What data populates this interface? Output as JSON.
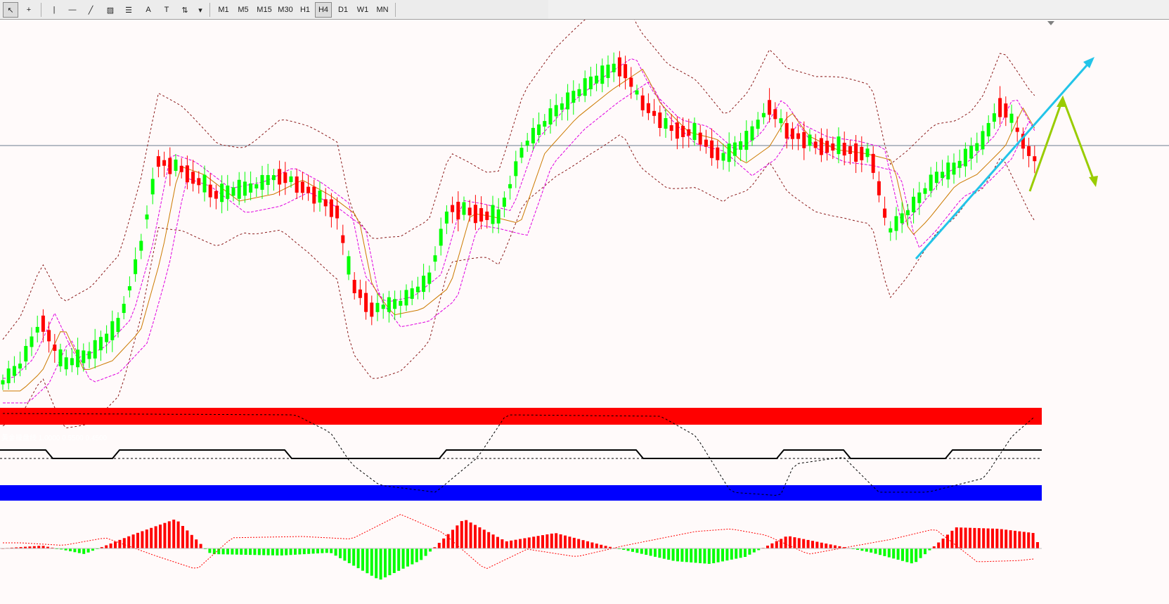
{
  "toolbar": {
    "tools": [
      {
        "name": "cursor-arrow-icon",
        "glyph": "↖"
      },
      {
        "name": "crosshair-icon",
        "glyph": "+"
      },
      {
        "name": "vertical-line-icon",
        "glyph": "|"
      },
      {
        "name": "horizontal-line-icon",
        "glyph": "—"
      },
      {
        "name": "trend-line-icon",
        "glyph": "╱"
      },
      {
        "name": "equidistant-channel-icon",
        "glyph": "▨"
      },
      {
        "name": "fibonacci-retracement-icon",
        "glyph": "☰"
      },
      {
        "name": "text-icon",
        "glyph": "A"
      },
      {
        "name": "text-label-icon",
        "glyph": "T"
      },
      {
        "name": "arrows-tool-icon",
        "glyph": "⇅"
      }
    ],
    "timeframes": [
      "M1",
      "M5",
      "M15",
      "M30",
      "H1",
      "H4",
      "D1",
      "W1",
      "MN"
    ],
    "active_timeframe": "H4"
  },
  "indicator": {
    "label": "黄金操盘线 1.0000 0.5500 0.4500"
  },
  "colors": {
    "bull": "#00ff00",
    "bear": "#ff0000",
    "bollinger": "#8b1a1a",
    "envelope": "#e000e0",
    "ma": "#cc7a00",
    "trend_up": "#22c4e8",
    "projection": "#99cc00",
    "band_top": "#ff0000",
    "band_bottom": "#0000ff"
  }
}
